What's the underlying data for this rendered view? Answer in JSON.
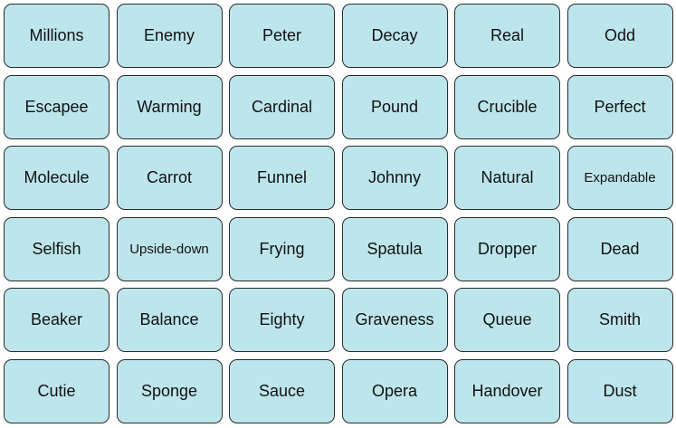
{
  "colors": {
    "tile_fill": "#bde6ec",
    "tile_border": "#2b2b2b",
    "text": "#111111"
  },
  "words": [
    "Millions",
    "Enemy",
    "Peter",
    "Decay",
    "Real",
    "Odd",
    "Escapee",
    "Warming",
    "Cardinal",
    "Pound",
    "Crucible",
    "Perfect",
    "Molecule",
    "Carrot",
    "Funnel",
    "Johnny",
    "Natural",
    "Expandable",
    "Selfish",
    "Upside-down",
    "Frying",
    "Spatula",
    "Dropper",
    "Dead",
    "Beaker",
    "Balance",
    "Eighty",
    "Graveness",
    "Queue",
    "Smith",
    "Cutie",
    "Sponge",
    "Sauce",
    "Opera",
    "Handover",
    "Dust"
  ]
}
